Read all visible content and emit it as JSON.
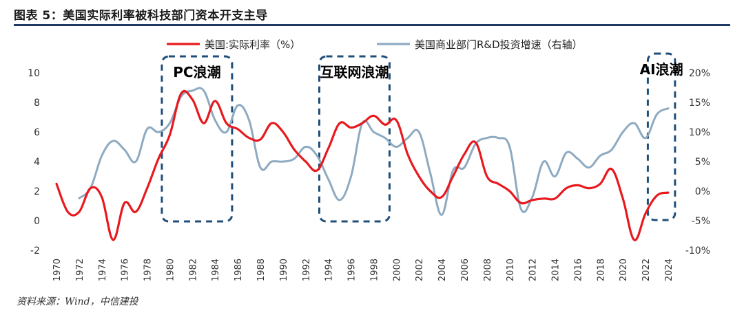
{
  "figure": {
    "title": "图表 5：美国实际利率被科技部门资本开支主导",
    "source": "资料来源：Wind，中信建投"
  },
  "chart_data": {
    "type": "line",
    "x": [
      1970,
      1971,
      1972,
      1973,
      1974,
      1975,
      1976,
      1977,
      1978,
      1979,
      1980,
      1981,
      1982,
      1983,
      1984,
      1985,
      1986,
      1987,
      1988,
      1989,
      1990,
      1991,
      1992,
      1993,
      1994,
      1995,
      1996,
      1997,
      1998,
      1999,
      2000,
      2001,
      2002,
      2003,
      2004,
      2005,
      2006,
      2007,
      2008,
      2009,
      2010,
      2011,
      2012,
      2013,
      2014,
      2015,
      2016,
      2017,
      2018,
      2019,
      2020,
      2021,
      2022,
      2023,
      2024
    ],
    "x_tick_labels": [
      "1970",
      "1972",
      "1974",
      "1976",
      "1978",
      "1980",
      "1982",
      "1984",
      "1986",
      "1988",
      "1990",
      "1992",
      "1994",
      "1996",
      "1998",
      "2000",
      "2002",
      "2004",
      "2006",
      "2008",
      "2010",
      "2012",
      "2014",
      "2016",
      "2018",
      "2020",
      "2022",
      "2024"
    ],
    "y_left": {
      "ylim": [
        -2,
        10
      ],
      "ticks": [
        "-2",
        "0",
        "2",
        "4",
        "6",
        "8",
        "10"
      ]
    },
    "y_right": {
      "ylim": [
        -10,
        20
      ],
      "ticks": [
        "-10%",
        "-5%",
        "0%",
        "5%",
        "10%",
        "15%",
        "20%"
      ]
    },
    "legend_position": "top",
    "series": [
      {
        "name": "美国:实际利率（%）",
        "axis": "left",
        "color": "#e8191e",
        "values": [
          2.5,
          0.6,
          0.6,
          2.2,
          1.6,
          -1.3,
          1.2,
          0.6,
          2.2,
          4.2,
          5.8,
          8.6,
          8.2,
          6.6,
          8.1,
          6.6,
          6.2,
          5.6,
          5.5,
          6.6,
          6.0,
          4.8,
          4.0,
          3.4,
          4.9,
          6.6,
          6.3,
          6.6,
          7.1,
          6.5,
          6.8,
          4.5,
          3.0,
          2.0,
          1.6,
          3.0,
          4.5,
          5.3,
          3.0,
          2.5,
          2.0,
          1.2,
          1.4,
          1.5,
          1.5,
          2.2,
          2.4,
          2.2,
          2.5,
          3.5,
          1.5,
          -1.3,
          0.5,
          1.7,
          1.9
        ]
      },
      {
        "name": "美国商业部门R&D投资增速（右轴）",
        "axis": "right",
        "color": "#8eaac1",
        "values": [
          null,
          null,
          -1.2,
          0.5,
          6.0,
          8.5,
          7.0,
          5.0,
          10.5,
          10.0,
          11.5,
          16.0,
          17.0,
          17.0,
          12.0,
          10.0,
          14.5,
          12.0,
          4.0,
          5.0,
          5.0,
          5.5,
          7.5,
          6.0,
          2.0,
          -1.5,
          2.5,
          11.5,
          10.0,
          9.0,
          7.5,
          9.0,
          10.0,
          3.0,
          -4.0,
          3.5,
          4.0,
          8.0,
          9.0,
          9.0,
          7.5,
          -3.0,
          -1.0,
          5.0,
          2.5,
          6.5,
          5.5,
          4.0,
          6.0,
          7.0,
          10.0,
          11.5,
          9.0,
          13.0,
          14.0
        ]
      }
    ],
    "annotations": [
      {
        "label": "PC浪潮",
        "x_start": 1979.3,
        "x_end": 1985.5
      },
      {
        "label": "互联网浪潮",
        "x_start": 1993.2,
        "x_end": 1999.4
      },
      {
        "label": "AI浪潮",
        "x_start": 2022.2,
        "x_end": 2024.6
      }
    ]
  }
}
